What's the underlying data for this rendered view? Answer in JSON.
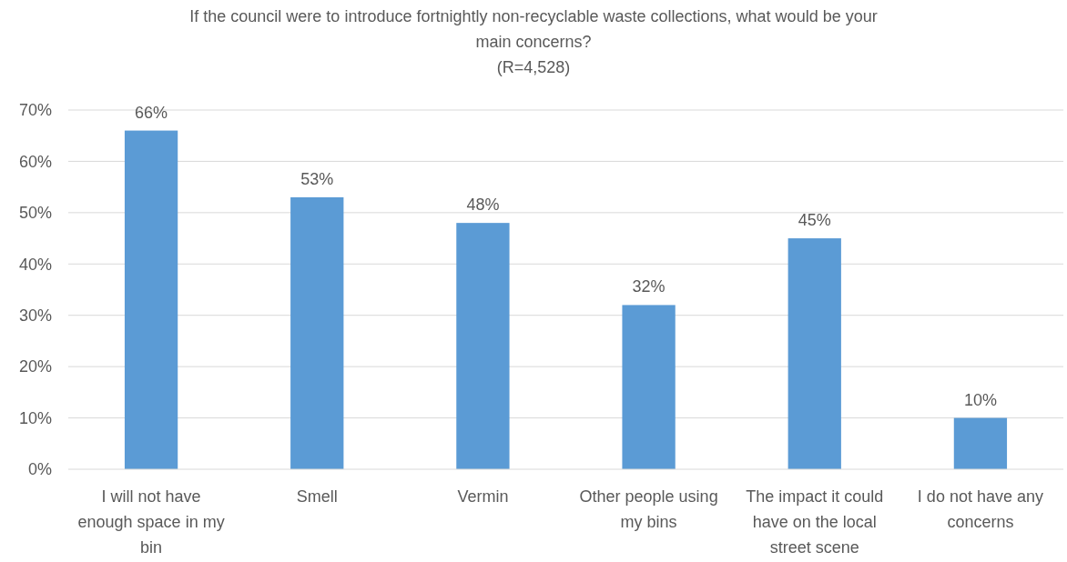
{
  "chart_data": {
    "type": "bar",
    "title": "If the council were to introduce fortnightly non-recyclable waste collections, what would be your main concerns?",
    "subtitle": "(R=4,528)",
    "categories": [
      "I will not have enough space in my bin",
      "Smell",
      "Vermin",
      "Other people using my bins",
      "The impact it could have on the local street scene",
      "I do not have any concerns"
    ],
    "values": [
      66,
      53,
      48,
      32,
      45,
      10
    ],
    "value_labels": [
      "66%",
      "53%",
      "48%",
      "32%",
      "45%",
      "10%"
    ],
    "color": "#5b9bd5",
    "ylim": [
      0,
      70
    ],
    "yticks": [
      {
        "value": 0,
        "label": "0%"
      },
      {
        "value": 10,
        "label": "10%"
      },
      {
        "value": 20,
        "label": "20%"
      },
      {
        "value": 30,
        "label": "30%"
      },
      {
        "value": 40,
        "label": "40%"
      },
      {
        "value": 50,
        "label": "50%"
      },
      {
        "value": 60,
        "label": "60%"
      },
      {
        "value": 70,
        "label": "70%"
      }
    ],
    "grid": "y"
  }
}
